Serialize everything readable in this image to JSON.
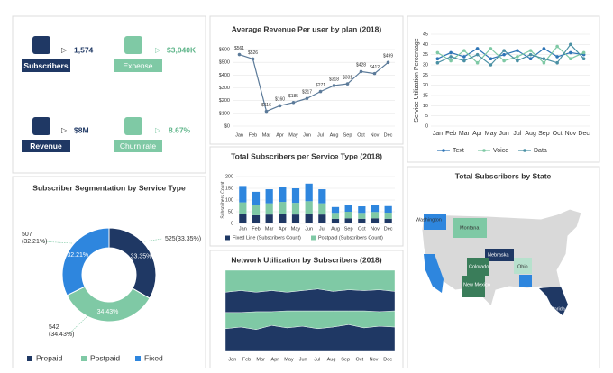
{
  "kpis": [
    {
      "label": "Subscribers",
      "value": "1,574"
    },
    {
      "label": "Expense",
      "value": "$3,040K"
    },
    {
      "label": "Revenue",
      "value": "$8M"
    },
    {
      "label": "Churn rate",
      "value": "8.67%"
    }
  ],
  "chart_data": [
    {
      "type": "line",
      "title": "Average Revenue Per user by plan (2018)",
      "categories": [
        "Jan",
        "Feb",
        "Mar",
        "Apr",
        "May",
        "Jun",
        "Jul",
        "Aug",
        "Sep",
        "Oct",
        "Nov",
        "Dec"
      ],
      "values": [
        561,
        526,
        116,
        160,
        185,
        217,
        271,
        318,
        331,
        428,
        412,
        499
      ],
      "value_labels": [
        "$561",
        "$526",
        "$116",
        "$160",
        "$185",
        "$217",
        "$271",
        "$318",
        "$331",
        "$428",
        "$412",
        "$499"
      ],
      "color": "#5b7a99",
      "ylim": [
        0,
        600
      ],
      "yticks": [
        {
          "value": 0,
          "label": "$0"
        },
        {
          "value": 100,
          "label": "$100"
        },
        {
          "value": 200,
          "label": "$200"
        },
        {
          "value": 300,
          "label": "$300"
        },
        {
          "value": 400,
          "label": "$400"
        },
        {
          "value": 500,
          "label": "$500"
        },
        {
          "value": 600,
          "label": "$600"
        }
      ],
      "grid": true
    },
    {
      "type": "line",
      "y_label": "Service Utilization Percentage",
      "categories": [
        "Jan",
        "Feb",
        "Mar",
        "Apr",
        "May",
        "Jun",
        "Jul",
        "Aug",
        "Sep",
        "Oct",
        "Nov",
        "Dec"
      ],
      "series": [
        {
          "name": "Text",
          "color": "#2e75b6",
          "values": [
            33,
            36,
            34,
            38,
            33,
            35,
            37,
            33,
            38,
            34,
            36,
            35
          ]
        },
        {
          "name": "Voice",
          "color": "#7fc9a5",
          "values": [
            36,
            32,
            37,
            31,
            38,
            32,
            34,
            37,
            31,
            39,
            33,
            36
          ]
        },
        {
          "name": "Data",
          "color": "#4a90a4",
          "values": [
            31,
            34,
            32,
            35,
            30,
            37,
            32,
            35,
            33,
            31,
            40,
            33
          ]
        }
      ],
      "ylim": [
        0,
        45
      ],
      "yticks": [
        0,
        5,
        10,
        15,
        20,
        25,
        30,
        35,
        40,
        45
      ],
      "grid": true
    },
    {
      "type": "bar",
      "title": "Total Subscribers per Service Type (2018)",
      "y_label": "Subscribers Count",
      "categories": [
        "Jan",
        "Feb",
        "Mar",
        "Apr",
        "May",
        "Jun",
        "Jul",
        "Aug",
        "Sep",
        "Oct",
        "Nov",
        "Dec"
      ],
      "series": [
        {
          "name": "Fixed Line (Subscribers Count)",
          "color": "#1f3864",
          "values": [
            40,
            35,
            38,
            40,
            38,
            40,
            38,
            20,
            22,
            20,
            22,
            20
          ]
        },
        {
          "name": "Postpaid (Subscribers Count)",
          "color": "#7fc9a5",
          "values": [
            50,
            45,
            48,
            52,
            50,
            55,
            48,
            25,
            28,
            25,
            27,
            26
          ]
        },
        {
          "color": "#2e86de",
          "values": [
            70,
            55,
            60,
            65,
            62,
            75,
            60,
            25,
            30,
            28,
            30,
            28
          ]
        }
      ],
      "ylim": [
        0,
        200
      ],
      "yticks": [
        0,
        50,
        100,
        150,
        200
      ],
      "grid": true
    },
    {
      "type": "pie",
      "title": "Subscriber Segmentation by Service Type",
      "categories": [
        "Prepaid",
        "Postpaid",
        "Fixed"
      ],
      "values": [
        33.35,
        34.43,
        32.21
      ],
      "value_labels": [
        "33.35%",
        "34.43%",
        "32.21%"
      ],
      "outer_labels": [
        [
          "525(33.35%)"
        ],
        [
          "542",
          "(34.43%)"
        ],
        [
          "507",
          "(32.21%)"
        ]
      ],
      "colors": [
        "#1f3864",
        "#7fc9a5",
        "#2e86de"
      ]
    },
    {
      "type": "area",
      "title": "Network Utilization by Subscribers (2018)",
      "categories": [
        "Jan",
        "Feb",
        "Mar",
        "Apr",
        "May",
        "Jun",
        "Jul",
        "Aug",
        "Sep",
        "Oct",
        "Nov",
        "Dec"
      ],
      "series": [
        {
          "color": "#1f3864",
          "values": [
            28,
            30,
            27,
            32,
            29,
            31,
            28,
            30,
            33,
            29,
            31,
            30
          ]
        },
        {
          "color": "#7fc9a5",
          "values": [
            20,
            18,
            22,
            17,
            21,
            19,
            22,
            20,
            17,
            21,
            18,
            20
          ]
        },
        {
          "color": "#1f3864",
          "values": [
            25,
            27,
            24,
            26,
            23,
            25,
            27,
            24,
            26,
            25,
            27,
            24
          ]
        },
        {
          "color": "#7fc9a5",
          "values": [
            27,
            25,
            27,
            25,
            27,
            25,
            23,
            26,
            24,
            25,
            24,
            26
          ]
        }
      ],
      "ylim": [
        0,
        100
      ]
    }
  ],
  "map": {
    "title": "Total Subscribers by State",
    "states": [
      {
        "name": "Washington",
        "color": "#2e86de"
      },
      {
        "name": "Montana",
        "color": "#7fc9a5"
      },
      {
        "name": "Nebraska",
        "color": "#1f3864"
      },
      {
        "name": "Colorado",
        "color": "#3a7d5a"
      },
      {
        "name": "New Mexico",
        "color": "#3a7d5a"
      },
      {
        "name": "Ohio",
        "color": "#b7e1cd"
      },
      {
        "name": "Florida",
        "color": "#1f3864"
      }
    ]
  }
}
